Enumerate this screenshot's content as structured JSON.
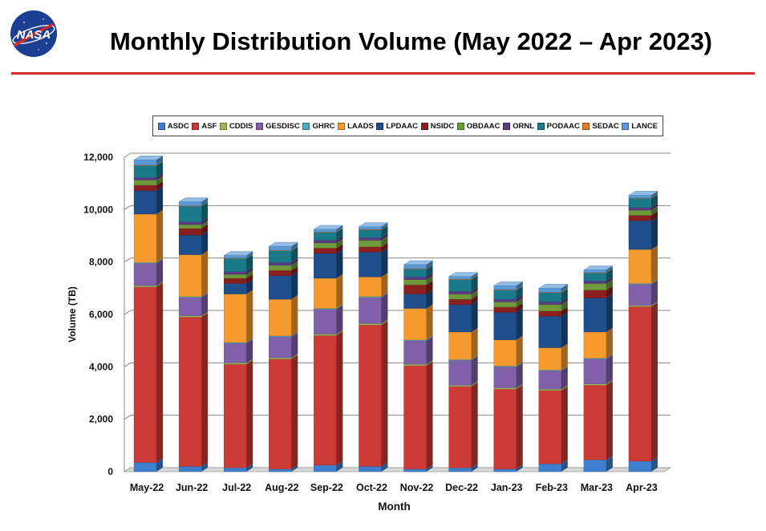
{
  "header": {
    "title": "Monthly Distribution Volume (May 2022 – Apr 2023)",
    "logo_text": "NASA"
  },
  "chart_data": {
    "type": "bar",
    "stacked": true,
    "three_d": true,
    "title": "Monthly Distribution Volume (May 2022 – Apr 2023)",
    "xlabel": "Month",
    "ylabel": "Volume (TB)",
    "ylim": [
      0,
      12000
    ],
    "yticks": [
      0,
      2000,
      4000,
      6000,
      8000,
      10000,
      12000
    ],
    "ytick_labels": [
      "0",
      "2,000",
      "4,000",
      "6,000",
      "8,000",
      "10,000",
      "12,000"
    ],
    "grid": true,
    "legend_position": "top",
    "categories": [
      "May-22",
      "Jun-22",
      "Jul-22",
      "Aug-22",
      "Sep-22",
      "Oct-22",
      "Nov-22",
      "Dec-22",
      "Jan-23",
      "Feb-23",
      "Mar-23",
      "Apr-23"
    ],
    "series": [
      {
        "name": "ASDC",
        "color": "#3f7fd0",
        "values": [
          350,
          200,
          150,
          100,
          250,
          200,
          100,
          150,
          100,
          300,
          450,
          400
        ]
      },
      {
        "name": "ASF",
        "color": "#cc3a36",
        "values": [
          6700,
          5700,
          3950,
          4200,
          4950,
          5400,
          3950,
          3100,
          3050,
          2800,
          2850,
          5900
        ]
      },
      {
        "name": "CDDIS",
        "color": "#9bbb59",
        "values": [
          50,
          50,
          50,
          50,
          50,
          50,
          50,
          50,
          50,
          50,
          50,
          50
        ]
      },
      {
        "name": "GESDISC",
        "color": "#8060a8",
        "values": [
          850,
          700,
          750,
          800,
          950,
          1000,
          900,
          950,
          800,
          700,
          950,
          800
        ]
      },
      {
        "name": "GHRC",
        "color": "#4bacc6",
        "values": [
          30,
          30,
          30,
          30,
          30,
          30,
          30,
          30,
          30,
          30,
          30,
          30
        ]
      },
      {
        "name": "LAADS",
        "color": "#f79a2e",
        "values": [
          1850,
          1600,
          1850,
          1400,
          1150,
          750,
          1200,
          1050,
          1000,
          850,
          1000,
          1300
        ]
      },
      {
        "name": "LPDAAC",
        "color": "#1f4e8c",
        "values": [
          900,
          750,
          400,
          900,
          950,
          950,
          550,
          1050,
          1050,
          1200,
          1300,
          1100
        ]
      },
      {
        "name": "NSIDC",
        "color": "#8b1f1f",
        "values": [
          200,
          250,
          200,
          200,
          200,
          200,
          350,
          200,
          200,
          200,
          300,
          200
        ]
      },
      {
        "name": "OBDAAC",
        "color": "#6f9a3a",
        "values": [
          200,
          150,
          150,
          200,
          200,
          250,
          200,
          200,
          200,
          250,
          250,
          200
        ]
      },
      {
        "name": "ORNL",
        "color": "#5b3a86",
        "values": [
          100,
          100,
          100,
          100,
          100,
          100,
          100,
          100,
          100,
          100,
          100,
          100
        ]
      },
      {
        "name": "PODAAC",
        "color": "#1a7a8a",
        "values": [
          450,
          600,
          500,
          450,
          300,
          300,
          300,
          450,
          350,
          350,
          300,
          350
        ]
      },
      {
        "name": "SEDAC",
        "color": "#e07b2a",
        "values": [
          20,
          20,
          20,
          20,
          20,
          20,
          20,
          20,
          20,
          20,
          20,
          20
        ]
      },
      {
        "name": "LANCE",
        "color": "#5a9ad8",
        "values": [
          200,
          150,
          100,
          150,
          100,
          100,
          150,
          100,
          150,
          150,
          100,
          100
        ]
      }
    ]
  }
}
